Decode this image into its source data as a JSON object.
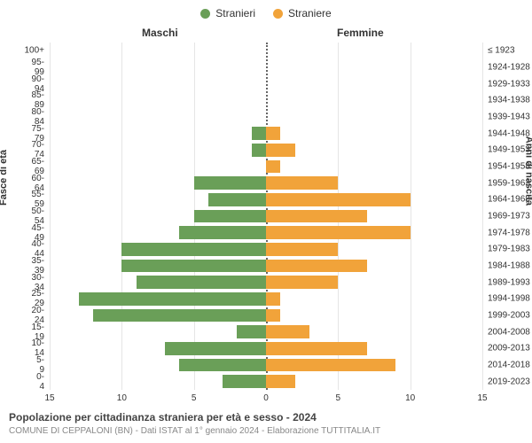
{
  "legend": {
    "male": {
      "label": "Stranieri",
      "color": "#6a9f58"
    },
    "female": {
      "label": "Straniere",
      "color": "#f1a33a"
    }
  },
  "header": {
    "left": "Maschi",
    "right": "Femmine"
  },
  "axes": {
    "left_title": "Fasce di età",
    "right_title": "Anni di nascita",
    "x_min": -15,
    "x_max": 15,
    "x_ticks": [
      -15,
      -10,
      -5,
      0,
      5,
      10,
      15
    ],
    "x_tick_labels": [
      "15",
      "10",
      "5",
      "0",
      "5",
      "10",
      "15"
    ],
    "grid_color": "#e5e5e5"
  },
  "chart": {
    "rows": [
      {
        "age": "100+",
        "birth": "≤ 1923",
        "male": 0,
        "female": 0
      },
      {
        "age": "95-99",
        "birth": "1924-1928",
        "male": 0,
        "female": 0
      },
      {
        "age": "90-94",
        "birth": "1929-1933",
        "male": 0,
        "female": 0
      },
      {
        "age": "85-89",
        "birth": "1934-1938",
        "male": 0,
        "female": 0
      },
      {
        "age": "80-84",
        "birth": "1939-1943",
        "male": 0,
        "female": 0
      },
      {
        "age": "75-79",
        "birth": "1944-1948",
        "male": 1,
        "female": 1
      },
      {
        "age": "70-74",
        "birth": "1949-1953",
        "male": 1,
        "female": 2
      },
      {
        "age": "65-69",
        "birth": "1954-1958",
        "male": 0,
        "female": 1
      },
      {
        "age": "60-64",
        "birth": "1959-1963",
        "male": 5,
        "female": 5
      },
      {
        "age": "55-59",
        "birth": "1964-1968",
        "male": 4,
        "female": 10
      },
      {
        "age": "50-54",
        "birth": "1969-1973",
        "male": 5,
        "female": 7
      },
      {
        "age": "45-49",
        "birth": "1974-1978",
        "male": 6,
        "female": 10
      },
      {
        "age": "40-44",
        "birth": "1979-1983",
        "male": 10,
        "female": 5
      },
      {
        "age": "35-39",
        "birth": "1984-1988",
        "male": 10,
        "female": 7
      },
      {
        "age": "30-34",
        "birth": "1989-1993",
        "male": 9,
        "female": 5
      },
      {
        "age": "25-29",
        "birth": "1994-1998",
        "male": 13,
        "female": 1
      },
      {
        "age": "20-24",
        "birth": "1999-2003",
        "male": 12,
        "female": 1
      },
      {
        "age": "15-19",
        "birth": "2004-2008",
        "male": 2,
        "female": 3
      },
      {
        "age": "10-14",
        "birth": "2009-2013",
        "male": 7,
        "female": 7
      },
      {
        "age": "5-9",
        "birth": "2014-2018",
        "male": 6,
        "female": 9
      },
      {
        "age": "0-4",
        "birth": "2019-2023",
        "male": 3,
        "female": 2
      }
    ],
    "bar_height_ratio": 0.78,
    "male_color": "#6a9f58",
    "female_color": "#f1a33a"
  },
  "title": "Popolazione per cittadinanza straniera per età e sesso - 2024",
  "subtitle": "COMUNE DI CEPPALONI (BN) - Dati ISTAT al 1° gennaio 2024 - Elaborazione TUTTITALIA.IT"
}
